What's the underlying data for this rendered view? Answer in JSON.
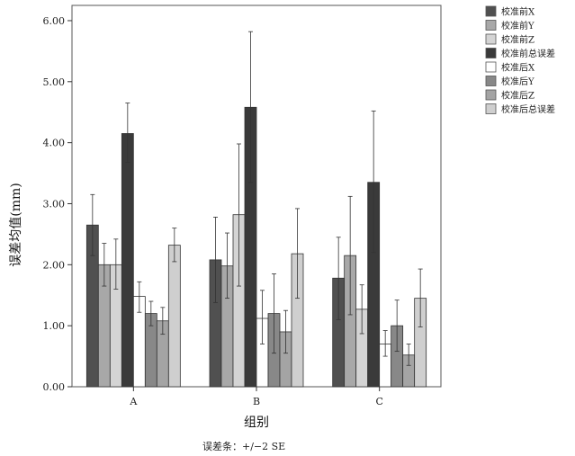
{
  "chart_data": {
    "type": "bar",
    "categories": [
      "A",
      "B",
      "C"
    ],
    "xlabel": "组别",
    "ylabel": "误差均值(mm)",
    "ylim": [
      0,
      6.25
    ],
    "yticks": [
      "0.00",
      "1.00",
      "2.00",
      "3.00",
      "4.00",
      "5.00",
      "6.00"
    ],
    "footnote": "误差条：+/−2 SE",
    "legend_position": "right",
    "series": [
      {
        "name": "校准前X",
        "color": "#505050",
        "values": [
          2.65,
          2.08,
          1.78
        ],
        "err_low": [
          2.15,
          1.38,
          1.1
        ],
        "err_high": [
          3.15,
          2.78,
          2.45
        ]
      },
      {
        "name": "校准前Y",
        "color": "#a8a8a8",
        "values": [
          2.0,
          1.98,
          2.15
        ],
        "err_low": [
          1.65,
          1.45,
          1.18
        ],
        "err_high": [
          2.35,
          2.52,
          3.12
        ]
      },
      {
        "name": "校准前Z",
        "color": "#d4d4d4",
        "values": [
          2.0,
          2.82,
          1.27
        ],
        "err_low": [
          1.6,
          1.65,
          0.87
        ],
        "err_high": [
          2.42,
          3.98,
          1.67
        ]
      },
      {
        "name": "校准前总误差",
        "color": "#3a3a3a",
        "values": [
          4.15,
          4.58,
          3.35
        ],
        "err_low": [
          3.68,
          3.35,
          2.2
        ],
        "err_high": [
          4.65,
          5.82,
          4.52
        ]
      },
      {
        "name": "校准后X",
        "color": "#ffffff",
        "values": [
          1.48,
          1.12,
          0.7
        ],
        "err_low": [
          1.22,
          0.7,
          0.5
        ],
        "err_high": [
          1.72,
          1.58,
          0.92
        ]
      },
      {
        "name": "校准后Y",
        "color": "#888888",
        "values": [
          1.2,
          1.2,
          1.0
        ],
        "err_low": [
          1.0,
          0.55,
          0.58
        ],
        "err_high": [
          1.4,
          1.85,
          1.42
        ]
      },
      {
        "name": "校准后Z",
        "color": "#a4a4a4",
        "values": [
          1.08,
          0.9,
          0.52
        ],
        "err_low": [
          0.86,
          0.55,
          0.35
        ],
        "err_high": [
          1.3,
          1.25,
          0.7
        ]
      },
      {
        "name": "校准后总误差",
        "color": "#cfcfcf",
        "values": [
          2.32,
          2.18,
          1.45
        ],
        "err_low": [
          2.05,
          1.45,
          0.98
        ],
        "err_high": [
          2.6,
          2.92,
          1.93
        ]
      }
    ]
  }
}
